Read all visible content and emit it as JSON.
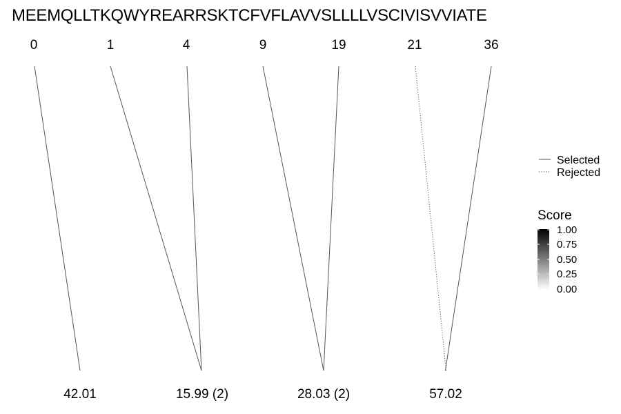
{
  "sequence": "MEEMQLLTKQWYREARRSKTCFVFLAVVSLLLLVSCIVISVVIATE",
  "top_positions": [
    "0",
    "1",
    "4",
    "9",
    "19",
    "21",
    "36"
  ],
  "bottom_scores": [
    "42.01",
    "15.99 (2)",
    "28.03 (2)",
    "57.02"
  ],
  "connections": [
    {
      "from": 0,
      "to": 0,
      "status": "selected",
      "score": 1
    },
    {
      "from": 1,
      "to": 1,
      "status": "selected",
      "score": 1
    },
    {
      "from": 2,
      "to": 1,
      "status": "selected",
      "score": 1
    },
    {
      "from": 3,
      "to": 2,
      "status": "selected",
      "score": 1
    },
    {
      "from": 4,
      "to": 2,
      "status": "selected",
      "score": 1
    },
    {
      "from": 5,
      "to": 3,
      "status": "rejected",
      "score": 1
    },
    {
      "from": 6,
      "to": 3,
      "status": "selected",
      "score": 1
    }
  ],
  "legend": {
    "selected_label": "Selected",
    "rejected_label": "Rejected"
  },
  "score_scale": {
    "title": "Score",
    "ticks": [
      "1.00",
      "0.75",
      "0.50",
      "0.25",
      "0.00"
    ],
    "low_color": "#ffffff",
    "high_color": "#000000"
  },
  "colors": {
    "line": "#555555"
  }
}
